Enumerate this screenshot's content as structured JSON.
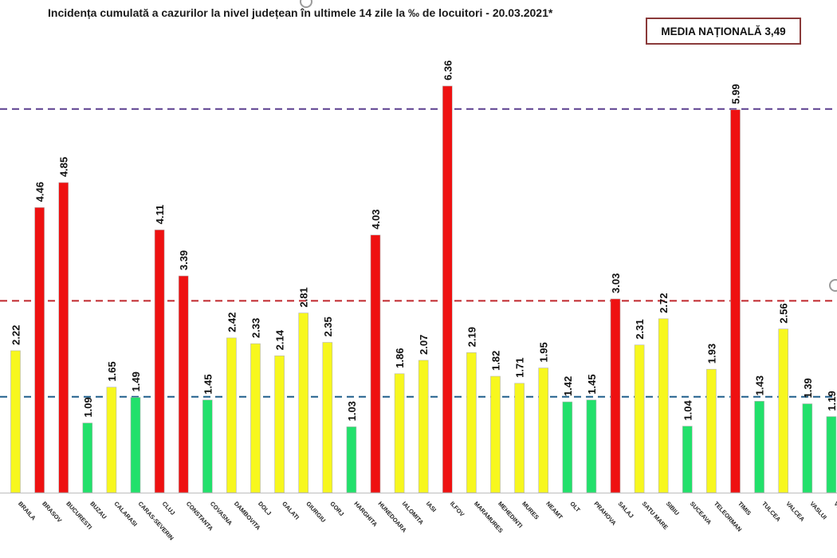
{
  "chart_data": {
    "type": "bar",
    "title": "Incidența cumulată a cazurilor la nivel județean în ultimele 14 zile la ‰ de locuitori - 20.03.2021*",
    "annotation": "MEDIA NAȚIONALĂ 3,49",
    "categories": [
      "BRAILA",
      "BRASOV",
      "BUCURESTI",
      "BUZAU",
      "CALARASI",
      "CARAS-SEVERIN",
      "CLUJ",
      "CONSTANTA",
      "COVASNA",
      "DAMBOVITA",
      "DOLJ",
      "GALATI",
      "GIURGIU",
      "GORJ",
      "HARGHITA",
      "HUNEDOARA",
      "IALOMITA",
      "IASI",
      "ILFOV",
      "MARAMURES",
      "MEHEDINTI",
      "MURES",
      "NEAMT",
      "OLT",
      "PRAHOVA",
      "SALAJ",
      "SATU MARE",
      "SIBIU",
      "SUCEAVA",
      "TELEORMAN",
      "TIMIS",
      "TULCEA",
      "VALCEA",
      "VASLUI",
      "VRANCEA"
    ],
    "values": [
      2.22,
      4.46,
      4.85,
      1.09,
      1.65,
      1.49,
      4.11,
      3.39,
      1.45,
      2.42,
      2.33,
      2.14,
      2.81,
      2.35,
      1.03,
      4.03,
      1.86,
      2.07,
      6.36,
      2.19,
      1.82,
      1.71,
      1.95,
      1.42,
      1.45,
      3.03,
      2.31,
      2.72,
      1.04,
      1.93,
      5.99,
      1.43,
      2.56,
      1.39,
      1.19
    ],
    "value_labels": [
      "2.22",
      "4.46",
      "4.85",
      "1.09",
      "1.65",
      "1.49",
      "4.11",
      "3.39",
      "1.45",
      "2.42",
      "2.33",
      "2.14",
      "2.81",
      "2.35",
      "1.03",
      "4.03",
      "1.86",
      "2.07",
      "6.36",
      "2.19",
      "1.82",
      "1.71",
      "1.95",
      "1.42",
      "1.45",
      "3.03",
      "2.31",
      "2.72",
      "1.04",
      "1.93",
      "5.99",
      "1.43",
      "2.56",
      "1.39",
      "1.19"
    ],
    "thresholds": [
      {
        "value": 1.5,
        "color": "#1f5f8b"
      },
      {
        "value": 3.0,
        "color": "#c0282d"
      },
      {
        "value": 6.0,
        "color": "#5b3f8f"
      }
    ],
    "bar_colors": {
      "low": "#22e06b",
      "mid": "#f7f71e",
      "high": "#ee1111"
    },
    "ylim": [
      0,
      6.36
    ],
    "xlabel": "",
    "ylabel": "",
    "grid": false,
    "legend": "none"
  }
}
